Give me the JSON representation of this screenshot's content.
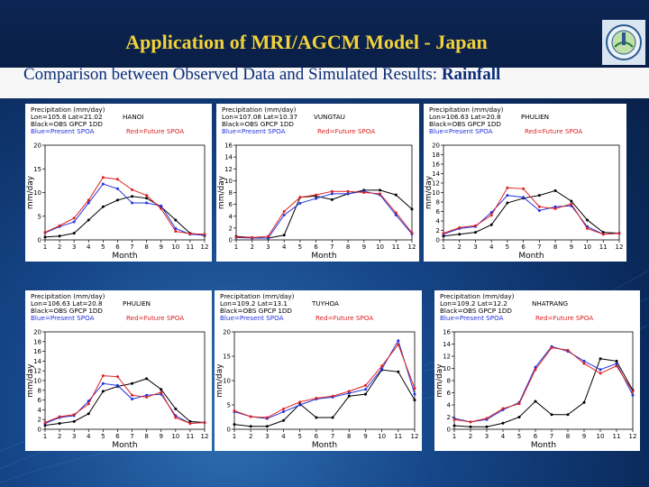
{
  "title": "Application of MRI/AGCM Model -  Japan",
  "subtitle_prefix": "Comparison between Observed Data and Simulated Results: ",
  "subtitle_bold": "Rainfall",
  "colors": {
    "title": "#f2d23a",
    "subtitle": "#0b2e7a",
    "obs": "#000000",
    "present": "#2233dd",
    "future": "#dd2222"
  },
  "chart_data": [
    {
      "type": "line",
      "header": [
        "Precipitation (mm/day)",
        "Lon=105.8   Lat=21.02",
        "HANOI",
        "Black=OBS GPCP 1DD",
        "Blue=Present SPOA",
        "Red=Future SPOA"
      ],
      "xlabel": "Month",
      "ylabel": "mm/day",
      "x": [
        1,
        2,
        3,
        4,
        5,
        6,
        7,
        8,
        9,
        10,
        11,
        12
      ],
      "ylim": [
        0,
        20
      ],
      "yticks": [
        0,
        5,
        10,
        15,
        20
      ],
      "series": [
        {
          "name": "OBS GPCP 1DD",
          "color": "#000000",
          "values": [
            0.6,
            0.8,
            1.4,
            4.2,
            7,
            8.4,
            9.2,
            8.8,
            7,
            4.2,
            1.4,
            0.9
          ]
        },
        {
          "name": "Present SPOA",
          "color": "#2233dd",
          "values": [
            1.5,
            2.8,
            3.8,
            7.8,
            11.8,
            10.8,
            7.8,
            7.8,
            7.2,
            2.4,
            1.2,
            1
          ]
        },
        {
          "name": "Future SPOA",
          "color": "#dd2222",
          "values": [
            1.6,
            3,
            4.6,
            8.4,
            13.2,
            12.8,
            10.6,
            9.4,
            6.6,
            1.8,
            1.3,
            1.2
          ]
        }
      ]
    },
    {
      "type": "line",
      "header": [
        "Precipitation (mm/day)",
        "Lon=107.08   Lat=10.37",
        "VUNGTAU",
        "Black=OBS GPCP 1DD",
        "Blue=Present SPOA",
        "Red=Future SPOA"
      ],
      "xlabel": "Month",
      "ylabel": "mm/day",
      "x": [
        1,
        2,
        3,
        4,
        5,
        6,
        7,
        8,
        9,
        10,
        11,
        12
      ],
      "ylim": [
        0,
        16
      ],
      "yticks": [
        0,
        2,
        4,
        6,
        8,
        10,
        12,
        14,
        16
      ],
      "series": [
        {
          "name": "OBS GPCP 1DD",
          "color": "#000000",
          "values": [
            0.6,
            0.4,
            0.3,
            0.8,
            7.2,
            7.4,
            6.8,
            7.8,
            8.4,
            8.4,
            7.6,
            5.2
          ]
        },
        {
          "name": "Present SPOA",
          "color": "#2233dd",
          "values": [
            0.4,
            0.3,
            0.3,
            4.2,
            6.2,
            7,
            7.8,
            7.8,
            8.2,
            7.6,
            4.2,
            1
          ]
        },
        {
          "name": "Future SPOA",
          "color": "#dd2222",
          "values": [
            0.5,
            0.4,
            0.6,
            4.8,
            7.2,
            7.6,
            8.2,
            8.2,
            8,
            7.8,
            4.6,
            1.2
          ]
        }
      ]
    },
    {
      "type": "line",
      "header": [
        "Precipitation (mm/day)",
        "Lon=106.63   Lat=20.8",
        "PHULIEN",
        "Black=OBS GPCP 1DD",
        "Blue=Present SPOA",
        "Red=Future SPOA"
      ],
      "xlabel": "Month",
      "ylabel": "mm/day",
      "x": [
        1,
        2,
        3,
        4,
        5,
        6,
        7,
        8,
        9,
        10,
        11,
        12
      ],
      "ylim": [
        0,
        20
      ],
      "yticks": [
        0,
        2,
        4,
        6,
        8,
        10,
        12,
        14,
        16,
        18,
        20
      ],
      "series": [
        {
          "name": "OBS GPCP 1DD",
          "color": "#000000",
          "values": [
            0.8,
            1.2,
            1.6,
            3.2,
            7.8,
            8.8,
            9.4,
            10.4,
            8.2,
            4.2,
            1.6,
            1.4
          ]
        },
        {
          "name": "Present SPOA",
          "color": "#2233dd",
          "values": [
            1.2,
            2.4,
            2.8,
            5.8,
            9.4,
            9,
            6.2,
            7,
            7.2,
            2.8,
            1.2,
            1.4
          ]
        },
        {
          "name": "Future SPOA",
          "color": "#dd2222",
          "values": [
            1.4,
            2.6,
            3,
            5.2,
            11,
            10.8,
            7,
            6.6,
            7.6,
            2.4,
            1.2,
            1.4
          ]
        }
      ]
    },
    {
      "type": "line",
      "header": [
        "Precipitation (mm/day)",
        "Lon=106.63   Lat=20.8",
        "PHULIEN",
        "Black=OBS GPCP 1DD",
        "Blue=Present SPOA",
        "Red=Future SPOA"
      ],
      "xlabel": "Month",
      "ylabel": "mm/day",
      "x": [
        1,
        2,
        3,
        4,
        5,
        6,
        7,
        8,
        9,
        10,
        11,
        12
      ],
      "ylim": [
        0,
        20
      ],
      "yticks": [
        0,
        2,
        4,
        6,
        8,
        10,
        12,
        14,
        16,
        18,
        20
      ],
      "series": [
        {
          "name": "OBS GPCP 1DD",
          "color": "#000000",
          "values": [
            0.8,
            1.2,
            1.6,
            3.2,
            7.8,
            8.8,
            9.4,
            10.4,
            8.2,
            4.2,
            1.6,
            1.4
          ]
        },
        {
          "name": "Present SPOA",
          "color": "#2233dd",
          "values": [
            1.2,
            2.4,
            2.8,
            5.8,
            9.4,
            9,
            6.2,
            7,
            7.2,
            2.8,
            1.2,
            1.4
          ]
        },
        {
          "name": "Future SPOA",
          "color": "#dd2222",
          "values": [
            1.4,
            2.6,
            3,
            5.2,
            11,
            10.8,
            7,
            6.6,
            7.6,
            2.4,
            1.2,
            1.4
          ]
        }
      ]
    },
    {
      "type": "line",
      "header": [
        "Precipitation (mm/day)",
        "Lon=109.2   Lat=13.1",
        "TUYHOA",
        "Black=OBS GPCP 1DD",
        "Blue=Present SPOA",
        "Red=Future SPOA"
      ],
      "xlabel": "Month",
      "ylabel": "mm/day",
      "x": [
        1,
        2,
        3,
        4,
        5,
        6,
        7,
        8,
        9,
        10,
        11,
        12
      ],
      "ylim": [
        0,
        20
      ],
      "yticks": [
        0,
        5,
        10,
        15,
        20
      ],
      "series": [
        {
          "name": "OBS GPCP 1DD",
          "color": "#000000",
          "values": [
            1,
            0.6,
            0.6,
            1.8,
            5.2,
            2.4,
            2.4,
            6.8,
            7.2,
            12.2,
            11.8,
            6
          ]
        },
        {
          "name": "Present SPOA",
          "color": "#2233dd",
          "values": [
            3.6,
            2.6,
            2.2,
            3.6,
            5,
            6.2,
            6.6,
            7.4,
            8.2,
            12.4,
            18.2,
            7.2
          ]
        },
        {
          "name": "Future SPOA",
          "color": "#dd2222",
          "values": [
            3.8,
            2.6,
            2.4,
            4.2,
            5.6,
            6.4,
            6.8,
            7.8,
            9,
            13,
            17.4,
            8.4
          ]
        }
      ]
    },
    {
      "type": "line",
      "header": [
        "Precipitation (mm/day)",
        "Lon=109.2   Lat=12.2",
        "NHATRANG",
        "Black=OBS GPCP 1DD",
        "Blue=Present SPOA",
        "Red=Future SPOA"
      ],
      "xlabel": "Month",
      "ylabel": "mm/day",
      "x": [
        1,
        2,
        3,
        4,
        5,
        6,
        7,
        8,
        9,
        10,
        11,
        12
      ],
      "ylim": [
        0,
        16
      ],
      "yticks": [
        0,
        2,
        4,
        6,
        8,
        10,
        12,
        14,
        16
      ],
      "series": [
        {
          "name": "OBS GPCP 1DD",
          "color": "#000000",
          "values": [
            0.6,
            0.4,
            0.4,
            1,
            2,
            4.6,
            2.4,
            2.4,
            4.4,
            11.6,
            11.2,
            6.4
          ]
        },
        {
          "name": "Present SPOA",
          "color": "#2233dd",
          "values": [
            1.8,
            1.2,
            1.6,
            3.2,
            4.4,
            10.2,
            13.6,
            12.8,
            11.2,
            9.8,
            10.8,
            5.6
          ]
        },
        {
          "name": "Future SPOA",
          "color": "#dd2222",
          "values": [
            1.6,
            1.2,
            1.8,
            3.4,
            4.2,
            9.8,
            13.4,
            13,
            10.8,
            9.2,
            10.4,
            6.2
          ]
        }
      ]
    }
  ]
}
